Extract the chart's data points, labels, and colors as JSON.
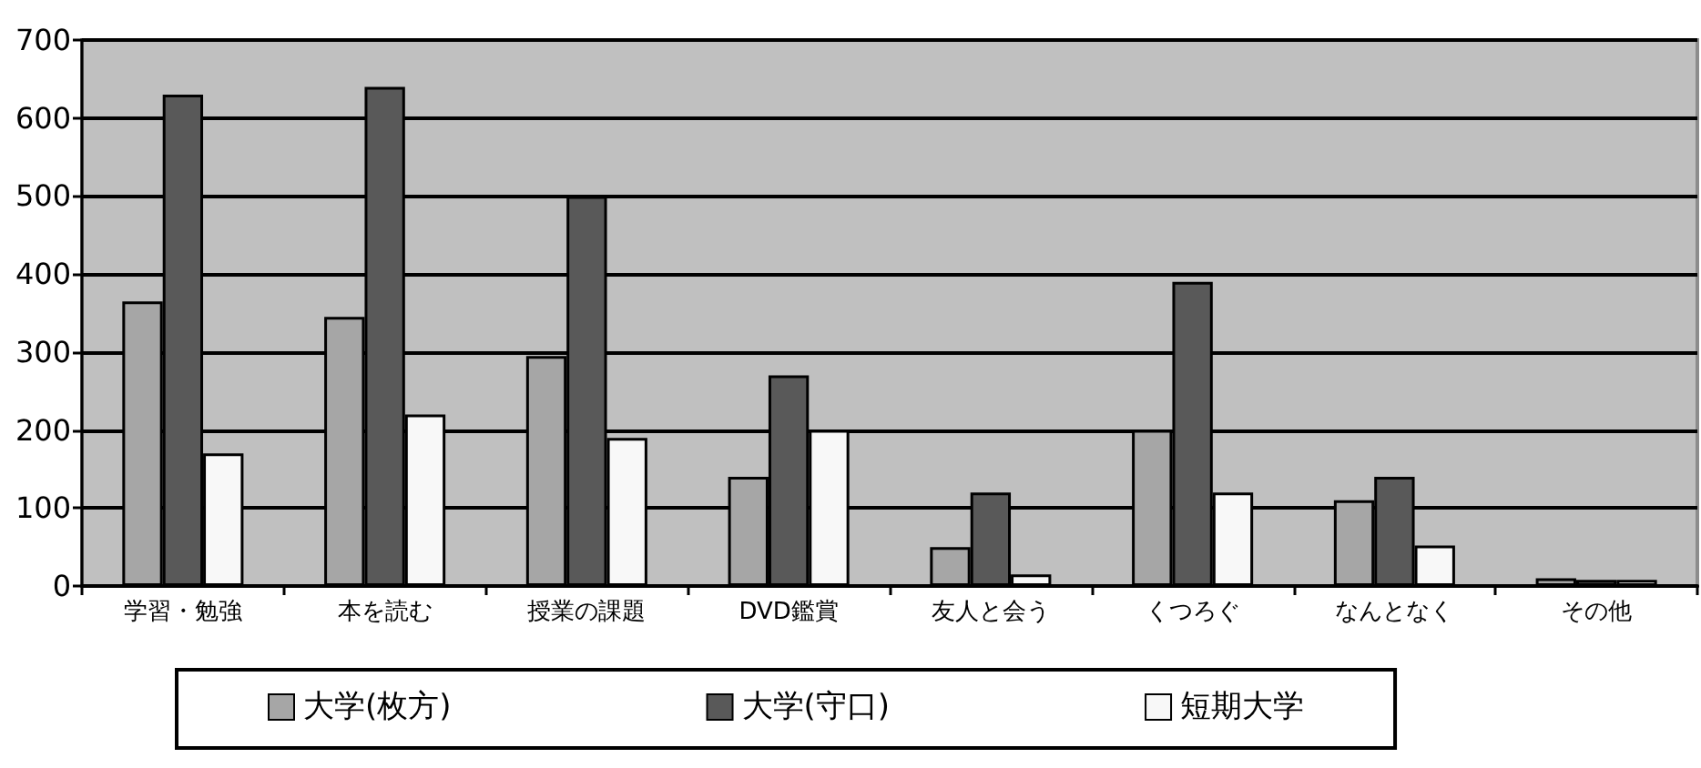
{
  "chart_data": {
    "type": "bar",
    "categories": [
      "学習・勉強",
      "本を読む",
      "授業の課題",
      "DVD鑑賞",
      "友人と会う",
      "くつろぐ",
      "なんとなく",
      "その他"
    ],
    "series": [
      {
        "name": "大学(枚方)",
        "color": "#a6a6a6",
        "values": [
          365,
          345,
          295,
          140,
          50,
          200,
          110,
          10
        ]
      },
      {
        "name": "大学(守口)",
        "color": "#595959",
        "values": [
          630,
          640,
          500,
          270,
          120,
          390,
          140,
          8
        ]
      },
      {
        "name": "短期大学",
        "color": "#f8f8f8",
        "values": [
          170,
          220,
          190,
          200,
          15,
          120,
          52,
          8
        ]
      }
    ],
    "ylim": [
      0,
      700
    ],
    "yticks": [
      0,
      100,
      200,
      300,
      400,
      500,
      600,
      700
    ],
    "grid": "y",
    "legend": "bottom"
  }
}
